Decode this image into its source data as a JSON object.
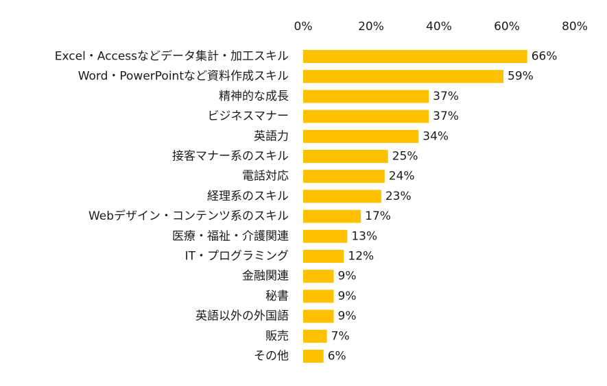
{
  "chart_data": {
    "type": "bar",
    "orientation": "horizontal",
    "title": "",
    "xlabel": "",
    "ylabel": "",
    "xlim": [
      0,
      80
    ],
    "x_ticks": [
      "0%",
      "20%",
      "40%",
      "60%",
      "80%"
    ],
    "x_tick_values": [
      0,
      20,
      40,
      60,
      80
    ],
    "axis_position": "top",
    "grid": false,
    "legend": "none",
    "bar_color": "#FFC000",
    "categories": [
      "Excel・Accessなどデータ集計・加工スキル",
      "Word・PowerPointなど資料作成スキル",
      "精神的な成長",
      "ビジネスマナー",
      "英語力",
      "接客マナー系のスキル",
      "電話対応",
      "経理系のスキル",
      "Webデザイン・コンテンツ系のスキル",
      "医療・福祉・介護関連",
      "IT・プログラミング",
      "金融関連",
      "秘書",
      "英語以外の外国語",
      "販売",
      "その他"
    ],
    "values": [
      66,
      59,
      37,
      37,
      34,
      25,
      24,
      23,
      17,
      13,
      12,
      9,
      9,
      9,
      7,
      6
    ],
    "value_labels": [
      "66%",
      "59%",
      "37%",
      "37%",
      "34%",
      "25%",
      "24%",
      "23%",
      "17%",
      "13%",
      "12%",
      "9%",
      "9%",
      "9%",
      "7%",
      "6%"
    ]
  }
}
